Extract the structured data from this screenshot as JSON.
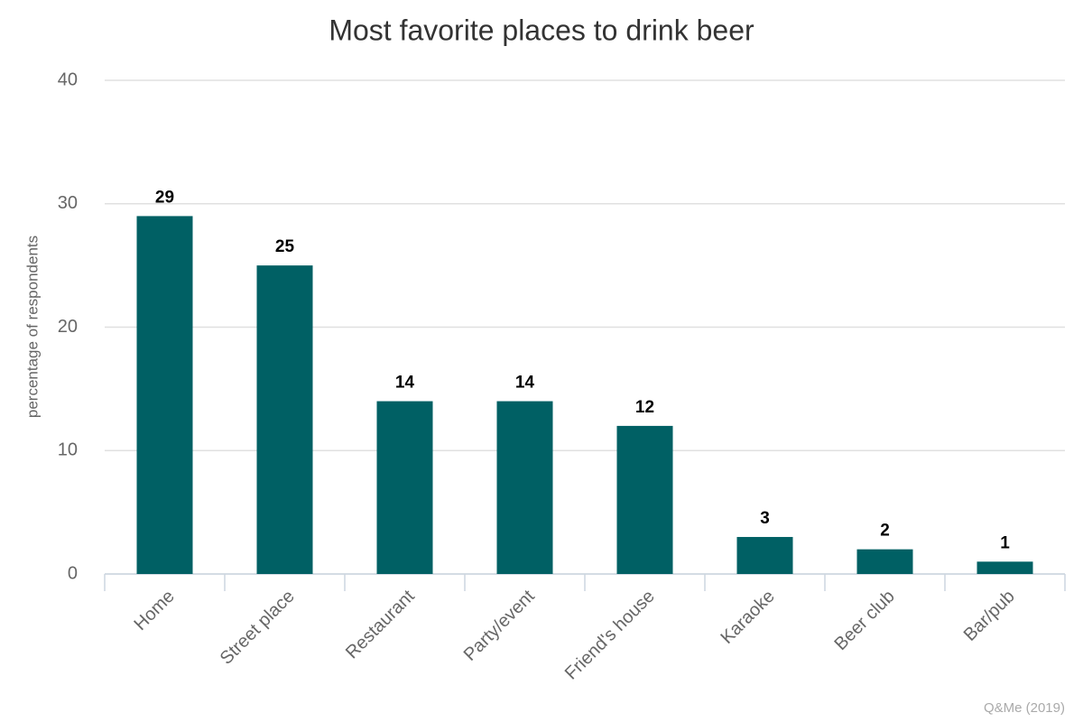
{
  "chart_data": {
    "type": "bar",
    "title": "Most favorite places to drink beer",
    "y_label": "percentage of respondents",
    "source": "Q&Me (2019)",
    "categories": [
      "Home",
      "Street place",
      "Restaurant",
      "Party/event",
      "Friend's house",
      "Karaoke",
      "Beer club",
      "Bar/pub"
    ],
    "values": [
      29,
      25,
      14,
      14,
      12,
      3,
      2,
      1
    ],
    "color": "#006064",
    "ylim": [
      0,
      40
    ],
    "yticks": [
      0,
      10,
      20,
      30,
      40
    ],
    "grid": true
  }
}
